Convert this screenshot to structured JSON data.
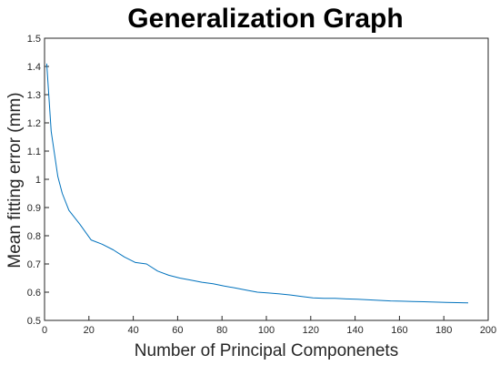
{
  "chart_data": {
    "type": "line",
    "title": "Generalization Graph",
    "xlabel": "Number of Principal Componenets",
    "ylabel": "Mean fitting error (mm)",
    "xlim": [
      0,
      200
    ],
    "ylim": [
      0.5,
      1.5
    ],
    "xticks": [
      "0",
      "20",
      "40",
      "60",
      "80",
      "100",
      "120",
      "140",
      "160",
      "180",
      "200"
    ],
    "yticks": [
      "0.5",
      "0.6",
      "0.7",
      "0.8",
      "0.9",
      "1",
      "1.1",
      "1.2",
      "1.3",
      "1.4",
      "1.5"
    ],
    "grid": false,
    "legend": "none",
    "line_color": "#0072BD",
    "series": [
      {
        "x": [
          1,
          3,
          6,
          8,
          11,
          16,
          21,
          26,
          31,
          36,
          41,
          46,
          51,
          56,
          61,
          66,
          71,
          76,
          81,
          86,
          91,
          96,
          101,
          106,
          111,
          116,
          121,
          126,
          131,
          136,
          141,
          146,
          151,
          156,
          161,
          166,
          171,
          176,
          181,
          186,
          191
        ],
        "y": [
          1.41,
          1.17,
          1.01,
          0.95,
          0.89,
          0.84,
          0.785,
          0.77,
          0.75,
          0.725,
          0.705,
          0.7,
          0.675,
          0.66,
          0.65,
          0.643,
          0.635,
          0.63,
          0.622,
          0.615,
          0.607,
          0.6,
          0.597,
          0.594,
          0.59,
          0.585,
          0.58,
          0.578,
          0.578,
          0.576,
          0.575,
          0.573,
          0.571,
          0.569,
          0.568,
          0.567,
          0.566,
          0.565,
          0.564,
          0.563,
          0.562
        ]
      }
    ]
  }
}
